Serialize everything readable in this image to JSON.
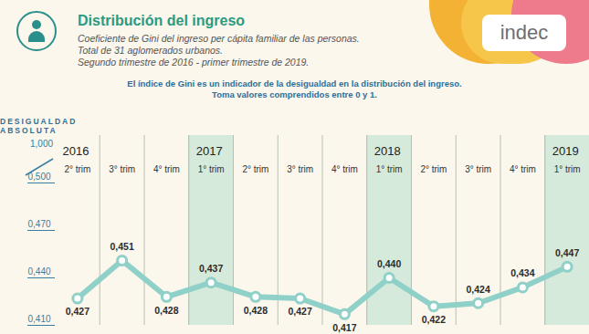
{
  "chart_data": {
    "type": "line",
    "title": "Distribución del ingreso",
    "subtitle": [
      "Coeficiente de Gini del ingreso per cápita familiar de las personas.",
      "Total de 31 aglomerados urbanos.",
      "Segundo trimestre de 2016 - primer trimestre de 2019."
    ],
    "source": "indec",
    "annotations": [
      "El índice de Gini es un indicador de la desigualdad en la distribución del ingreso.",
      "Toma valores comprendidos entre 0 y 1."
    ],
    "ylabel": "DESIGUALDAD ABSOLUTA",
    "y_break": {
      "value": 1,
      "label": "1,000"
    },
    "categories": [
      "2° trim",
      "3° trim",
      "4° trim",
      "1° trim",
      "2° trim",
      "3° trim",
      "4° trim",
      "1° trim",
      "2° trim",
      "3° trim",
      "4° trim",
      "1° trim"
    ],
    "years": [
      "2016",
      null,
      null,
      "2017",
      null,
      null,
      null,
      "2018",
      null,
      null,
      null,
      "2019"
    ],
    "values": [
      0.427,
      0.451,
      0.428,
      0.437,
      0.428,
      0.427,
      0.417,
      0.44,
      0.422,
      0.424,
      0.434,
      0.447
    ],
    "value_labels": [
      "0,427",
      "0,451",
      "0,428",
      "0,437",
      "0,428",
      "0,427",
      "0,417",
      "0,440",
      "0,422",
      "0,424",
      "0,434",
      "0,447"
    ],
    "data_labels": true,
    "color": "#8fd0c8",
    "marker": "circle",
    "ylim": [
      0.41,
      0.5
    ],
    "yticks": [
      {
        "value": 0.41,
        "label": "0,410"
      },
      {
        "value": 0.44,
        "label": "0,440"
      },
      {
        "value": 0.47,
        "label": "0,470"
      },
      {
        "value": 0.5,
        "label": "0,500"
      }
    ],
    "grid": false
  }
}
